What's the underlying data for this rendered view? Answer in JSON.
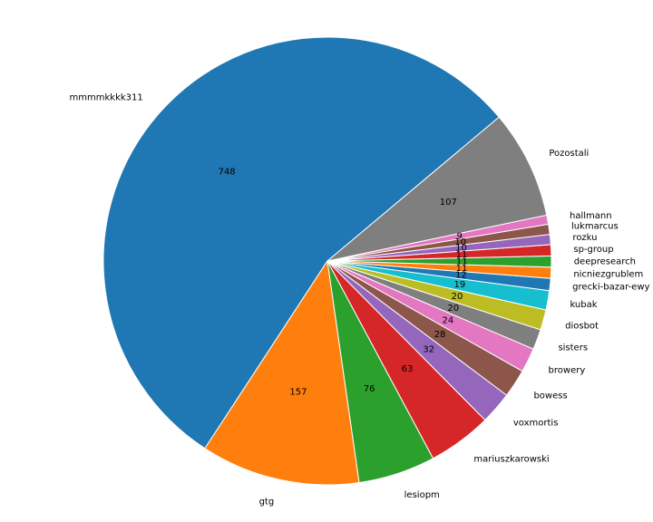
{
  "chart_data": {
    "type": "pie",
    "title": "",
    "start_angle_deg": 40,
    "direction": "counterclockwise",
    "slices": [
      {
        "label": "mmmmkkkk311",
        "value": 748,
        "color": "#1f77b4"
      },
      {
        "label": "gtg",
        "value": 157,
        "color": "#ff7f0e"
      },
      {
        "label": "lesiopm",
        "value": 76,
        "color": "#2ca02c"
      },
      {
        "label": "mariuszkarowski",
        "value": 63,
        "color": "#d62728"
      },
      {
        "label": "voxmortis",
        "value": 32,
        "color": "#9467bd"
      },
      {
        "label": "bowess",
        "value": 28,
        "color": "#8c564b"
      },
      {
        "label": "browery",
        "value": 24,
        "color": "#e377c2"
      },
      {
        "label": "sisters",
        "value": 20,
        "color": "#7f7f7f"
      },
      {
        "label": "diosbot",
        "value": 20,
        "color": "#bcbd22"
      },
      {
        "label": "kubak",
        "value": 19,
        "color": "#17becf"
      },
      {
        "label": "grecki-bazar-ewy",
        "value": 12,
        "color": "#1f77b4"
      },
      {
        "label": "nicniezgrublem",
        "value": 11,
        "color": "#ff7f0e"
      },
      {
        "label": "deepresearch",
        "value": 11,
        "color": "#2ca02c"
      },
      {
        "label": "sp-group",
        "value": 11,
        "color": "#d62728"
      },
      {
        "label": "rozku",
        "value": 10,
        "color": "#9467bd"
      },
      {
        "label": "lukmarcus",
        "value": 10,
        "color": "#8c564b"
      },
      {
        "label": "hallmann",
        "value": 9,
        "color": "#e377c2"
      },
      {
        "label": "Pozostali",
        "value": 107,
        "color": "#7f7f7f"
      }
    ]
  }
}
